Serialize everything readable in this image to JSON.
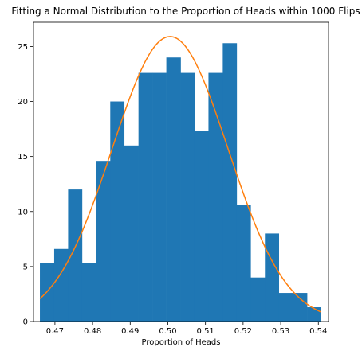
{
  "chart_data": {
    "type": "bar",
    "title": "Fitting a Normal Distribution to the Proportion of Heads within 1000 Flips",
    "xlabel": "Proportion of Heads",
    "ylabel": "",
    "xlim": [
      0.4643,
      0.5427
    ],
    "ylim": [
      0,
      27.2
    ],
    "xticks": [
      0.47,
      0.48,
      0.49,
      0.5,
      0.51,
      0.52,
      0.53,
      0.54
    ],
    "xtick_labels": [
      "0.47",
      "0.48",
      "0.49",
      "0.50",
      "0.51",
      "0.52",
      "0.53",
      "0.54"
    ],
    "yticks": [
      0,
      5,
      10,
      15,
      20,
      25
    ],
    "ytick_labels": [
      "0",
      "5",
      "10",
      "15",
      "20",
      "25"
    ],
    "grid": false,
    "colors": {
      "bars": "#1f77b4",
      "curve": "#ff7f0e"
    },
    "series": [
      {
        "type": "histogram",
        "bin_edges": [
          0.466,
          0.4698,
          0.4735,
          0.4772,
          0.481,
          0.4847,
          0.4884,
          0.4922,
          0.4959,
          0.4996,
          0.5034,
          0.5071,
          0.5108,
          0.5146,
          0.5183,
          0.522,
          0.5258,
          0.5295,
          0.5332,
          0.537,
          0.5407
        ],
        "values": [
          5.3,
          6.6,
          12.0,
          5.3,
          14.6,
          20.0,
          16.0,
          22.6,
          22.6,
          24.0,
          22.6,
          17.3,
          22.6,
          25.3,
          10.6,
          4.0,
          8.0,
          2.6,
          2.6,
          1.3
        ]
      },
      {
        "type": "line",
        "mean": 0.5006,
        "std": 0.0154
      }
    ]
  }
}
